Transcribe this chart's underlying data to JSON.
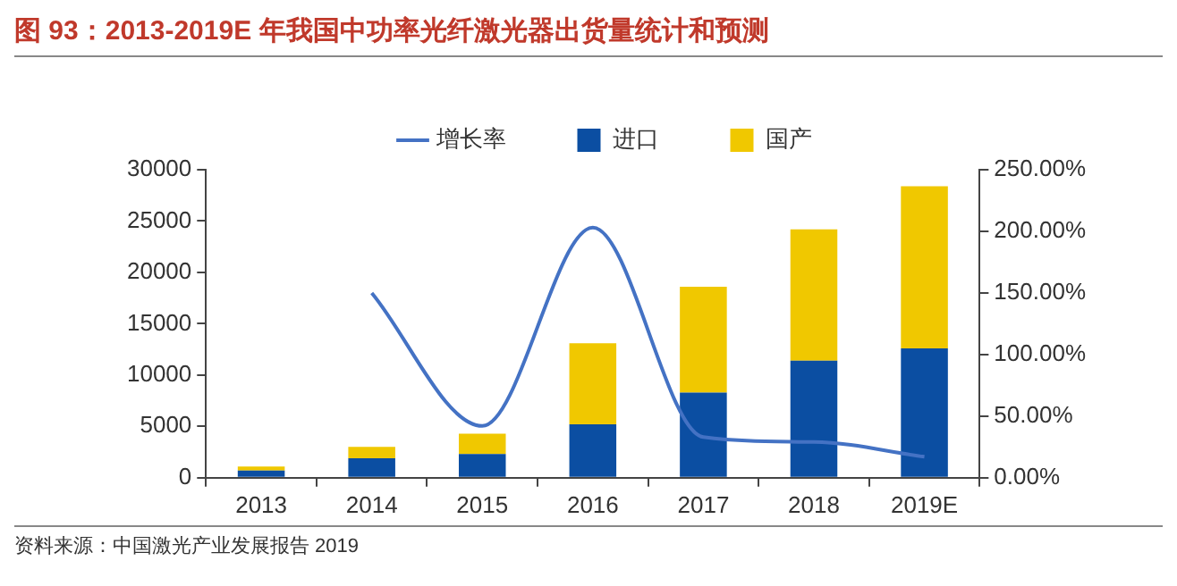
{
  "chart_data": {
    "type": "bar",
    "title": "图 93：2013-2019E 年我国中功率光纤激光器出货量统计和预测",
    "annotations": [
      "资料来源：中国激光产业发展报告 2019"
    ],
    "categories": [
      "2013",
      "2014",
      "2015",
      "2016",
      "2017",
      "2018",
      "2019E"
    ],
    "stacked": true,
    "grid": false,
    "legend": "top",
    "marker": "none",
    "line_style": "solid",
    "ylim": [
      0,
      30000
    ],
    "yticks": [
      0,
      5000,
      10000,
      15000,
      20000,
      25000,
      30000
    ],
    "y2lim": [
      0,
      250
    ],
    "y2ticks": [
      {
        "value": 0,
        "label": "0.00%"
      },
      {
        "value": 50,
        "label": "50.00%"
      },
      {
        "value": 100,
        "label": "100.00%"
      },
      {
        "value": 150,
        "label": "150.00%"
      },
      {
        "value": 200,
        "label": "200.00%"
      },
      {
        "value": 250,
        "label": "250.00%"
      }
    ],
    "series": [
      {
        "name": "进口",
        "color": "#0b4ea2",
        "values": [
          700,
          1900,
          2300,
          5200,
          8300,
          11400,
          12600
        ]
      },
      {
        "name": "国产",
        "color": "#f0c800",
        "values": [
          400,
          1100,
          2000,
          7900,
          10300,
          12800,
          15800
        ]
      },
      {
        "name": "增长率",
        "type": "line",
        "axis": "y2",
        "color": "#4472c4",
        "values": [
          null,
          150,
          42,
          203,
          33,
          29,
          17
        ]
      }
    ]
  }
}
